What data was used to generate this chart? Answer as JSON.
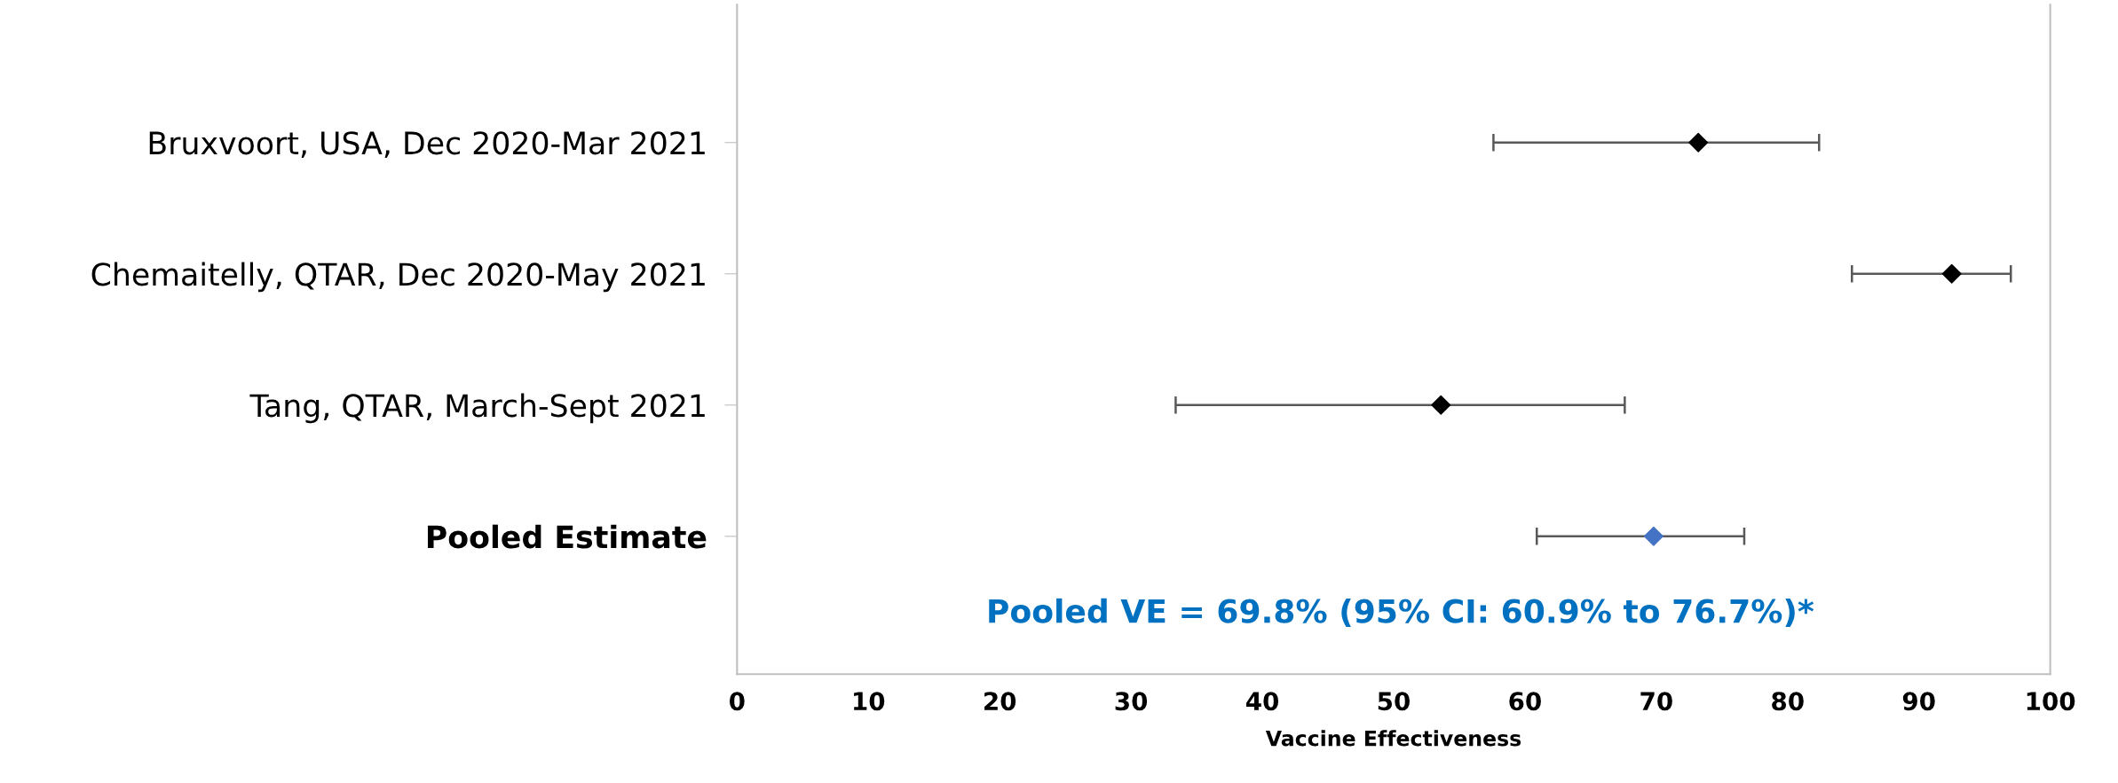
{
  "chart_data": {
    "type": "scatter",
    "orientation": "horizontal",
    "xlabel": "Vaccine Effectiveness",
    "categories": [
      "Bruxvoort, USA, Dec 2020-Mar 2021",
      "Chemaitelly, QTAR, Dec 2020-May 2021",
      "Tang, QTAR, March-Sept 2021",
      "Pooled Estimate"
    ],
    "values": [
      73.2,
      92.5,
      53.6,
      69.8
    ],
    "colors": [
      "#000000",
      "#000000",
      "#000000",
      "#4472c4"
    ],
    "errors": [
      [
        57.6,
        82.4
      ],
      [
        84.9,
        97.0
      ],
      [
        33.4,
        67.6
      ],
      [
        60.9,
        76.7
      ]
    ],
    "xlim": [
      0,
      100
    ],
    "xticks": [
      0,
      10,
      20,
      30,
      40,
      50,
      60,
      70,
      80,
      90,
      100
    ],
    "marker": "diamond",
    "grid": false,
    "annotations": [
      "Pooled VE = 69.8% (95% CI: 60.9% to 76.7%)*"
    ]
  }
}
